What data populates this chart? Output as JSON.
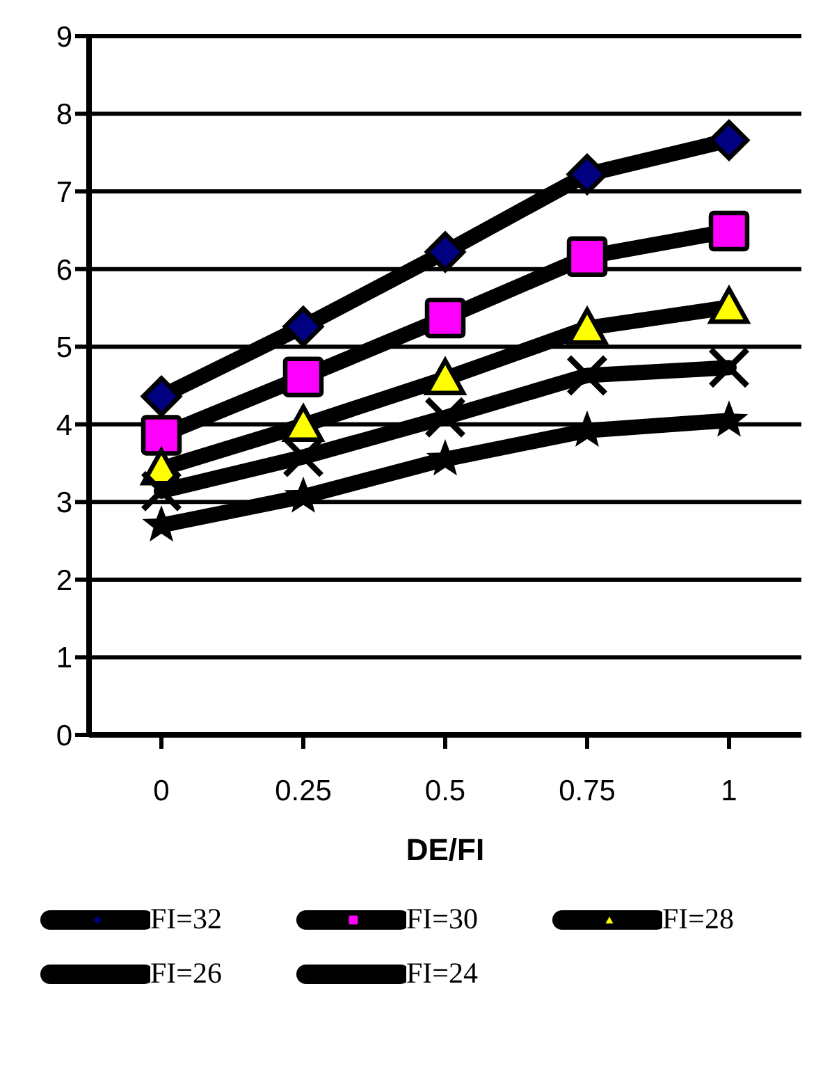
{
  "chart_data": {
    "type": "line",
    "xlabel": "DE/FI",
    "categories": [
      "0",
      "0.25",
      "0.5",
      "0.75",
      "1"
    ],
    "ylim": [
      0,
      9
    ],
    "yticks": [
      0,
      1,
      2,
      3,
      4,
      5,
      6,
      7,
      8,
      9
    ],
    "grid": "y",
    "legend": "bottom",
    "series": [
      {
        "name": "FI=32",
        "color": "#000080",
        "marker": "diamond",
        "values": [
          4.36,
          5.26,
          6.22,
          7.22,
          7.66
        ]
      },
      {
        "name": "FI=30",
        "color": "#ff00ff",
        "marker": "square",
        "values": [
          3.86,
          4.61,
          5.37,
          6.16,
          6.49
        ]
      },
      {
        "name": "FI=28",
        "color": "#ffff00",
        "marker": "triangle",
        "values": [
          3.43,
          3.99,
          4.59,
          5.24,
          5.51
        ]
      },
      {
        "name": "FI=26",
        "color": "#000000",
        "marker": "cross",
        "values": [
          3.14,
          3.58,
          4.09,
          4.63,
          4.73
        ]
      },
      {
        "name": "FI=24",
        "color": "#000000",
        "marker": "star",
        "values": [
          2.7,
          3.07,
          3.55,
          3.92,
          4.05
        ]
      }
    ]
  }
}
